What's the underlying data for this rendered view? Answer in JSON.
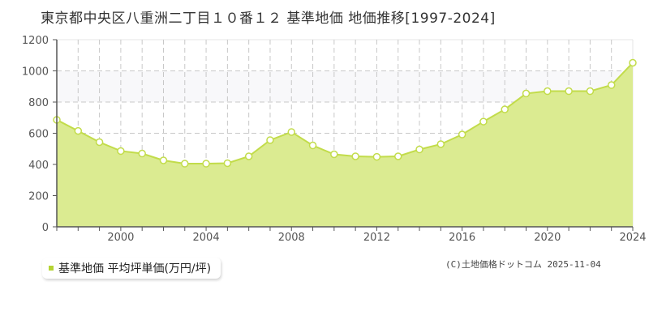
{
  "header": {
    "title": "東京都中央区八重洲二丁目１０番１２ 基準地価 地価推移[1997-2024]"
  },
  "legend": {
    "label": "基準地価 平均坪単価(万円/坪)",
    "color": "#b5d433"
  },
  "footer": {
    "copyright": "(C)土地価格ドットコム 2025-11-04"
  },
  "colors": {
    "area_fill": "#dbeb91",
    "line": "#c2dc4a",
    "band_fill": "#f8f8fa",
    "grid": "#c8c8c8",
    "axis": "#555555"
  },
  "chart_data": {
    "type": "area",
    "title": "東京都中央区八重洲二丁目１０番１２ 基準地価 地価推移[1997-2024]",
    "xlabel": "",
    "ylabel": "",
    "x": [
      1997,
      1998,
      1999,
      2000,
      2001,
      2002,
      2003,
      2004,
      2005,
      2006,
      2007,
      2008,
      2009,
      2010,
      2011,
      2012,
      2013,
      2014,
      2015,
      2016,
      2017,
      2018,
      2019,
      2020,
      2021,
      2022,
      2023,
      2024
    ],
    "series": [
      {
        "name": "基準地価 平均坪単価(万円/坪)",
        "values": [
          686,
          615,
          543,
          486,
          470,
          426,
          405,
          405,
          408,
          452,
          556,
          608,
          522,
          465,
          452,
          449,
          452,
          496,
          530,
          592,
          675,
          753,
          855,
          870,
          870,
          870,
          909,
          1052
        ]
      }
    ],
    "xlim": [
      1997,
      2024
    ],
    "ylim": [
      0,
      1200
    ],
    "x_ticks": [
      2000,
      2004,
      2008,
      2012,
      2016,
      2020,
      2024
    ],
    "y_ticks": [
      0,
      200,
      400,
      600,
      800,
      1000,
      1200
    ],
    "grid": true,
    "legend_position": "bottom-left"
  }
}
